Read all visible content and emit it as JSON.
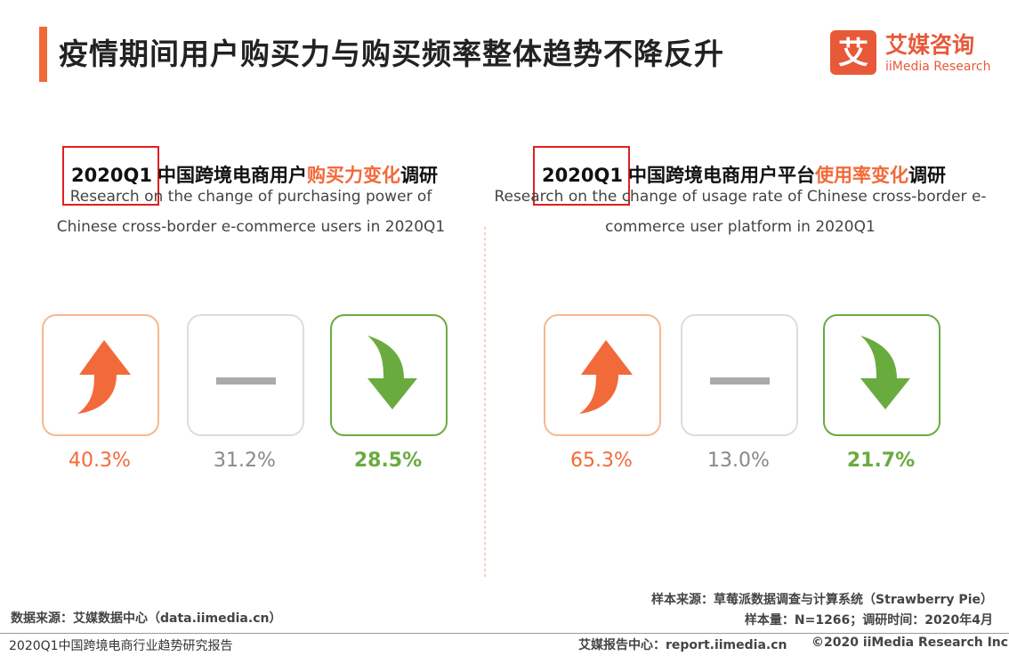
{
  "header": {
    "title": "疫情期间用户购买力与购买频率整体趋势不降反升",
    "logo": {
      "mark": "艾",
      "name": "艾媒咨询",
      "en": "iiMedia Research"
    }
  },
  "panels": [
    {
      "title": {
        "period": "2020Q1",
        "lead": "中国跨境电商用户",
        "highlight": "购买力变化",
        "tail": "调研"
      },
      "subtitle": [
        "Research on the change of purchasing power of",
        "Chinese cross-border e-commerce users in 2020Q1"
      ],
      "items": [
        "40.3%",
        "31.2%",
        "28.5%"
      ]
    },
    {
      "title": {
        "period": "2020Q1",
        "lead": "中国跨境电商用户平台",
        "highlight": "使用率变化",
        "tail": "调研"
      },
      "subtitle": [
        "Research on the change of usage rate of Chinese cross-border e-",
        "commerce user platform in 2020Q1"
      ],
      "items": [
        "65.3%",
        "13.0%",
        "21.7%"
      ]
    }
  ],
  "footer": {
    "source": "数据来源：艾媒数据中心（data.iimedia.cn）",
    "sample_source": "样本来源：草莓派数据调查与计算系统（Strawberry Pie）",
    "sample_size": "样本量：N=1266；调研时间：2020年4月",
    "report": "2020Q1中国跨境电商行业趋势研究报告",
    "center": "艾媒报告中心：report.iimedia.cn",
    "copyright": "©2020  iiMedia Research  Inc"
  }
}
